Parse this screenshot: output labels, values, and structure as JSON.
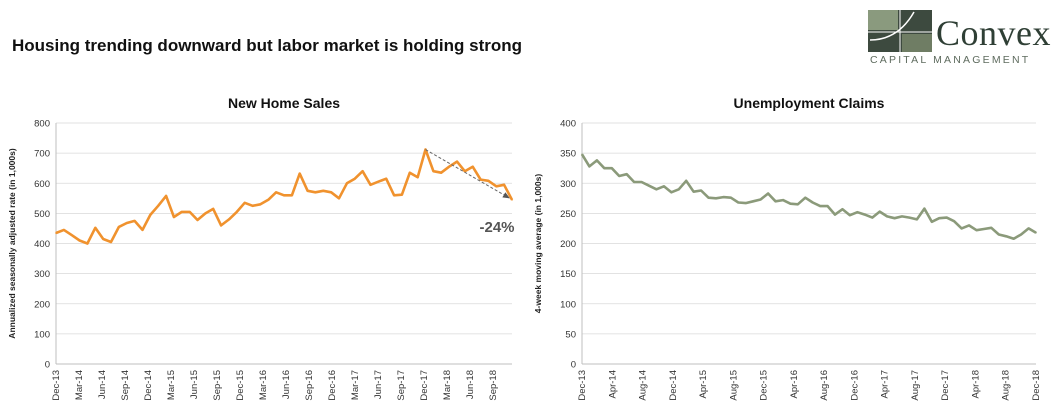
{
  "page_title": "Housing trending downward but labor market is holding strong",
  "logo": {
    "word": "Convex",
    "subtitle": "CAPITAL MANAGEMENT",
    "colors": [
      "#8a9a7e",
      "#3d4a3f"
    ]
  },
  "chart_data": [
    {
      "type": "line",
      "title": "New Home Sales",
      "ylabel": "Annualized seasonally adjusted rate (in 1,000s)",
      "xlabel": "",
      "ylim": [
        0,
        800
      ],
      "yticks": [
        0,
        100,
        200,
        300,
        400,
        500,
        600,
        700,
        800
      ],
      "x_tick_labels": [
        "Dec-13",
        "Mar-14",
        "Jun-14",
        "Sep-14",
        "Dec-14",
        "Mar-15",
        "Jun-15",
        "Sep-15",
        "Dec-15",
        "Mar-16",
        "Jun-16",
        "Sep-16",
        "Dec-16",
        "Mar-17",
        "Jun-17",
        "Sep-17",
        "Dec-17",
        "Mar-18",
        "Jun-18",
        "Sep-18"
      ],
      "grid": true,
      "color": "#f0922e",
      "series": [
        {
          "values": [
            435,
            445,
            428,
            410,
            400,
            452,
            415,
            405,
            455,
            468,
            475,
            445,
            495,
            525,
            558,
            488,
            505,
            505,
            478,
            500,
            515,
            460,
            480,
            505,
            535,
            525,
            530,
            545,
            570,
            560,
            560,
            632,
            575,
            570,
            575,
            570,
            550,
            600,
            615,
            640,
            595,
            605,
            615,
            560,
            562,
            635,
            620,
            712,
            640,
            635,
            655,
            672,
            640,
            655,
            612,
            608,
            590,
            595,
            545
          ]
        }
      ],
      "annotation": {
        "label": "-24%",
        "from_index": 47,
        "to_index": 58
      }
    },
    {
      "type": "line",
      "title": "Unemployment Claims",
      "ylabel": "4-week moving average (in 1,000s)",
      "xlabel": "",
      "ylim": [
        0,
        400
      ],
      "yticks": [
        0,
        50,
        100,
        150,
        200,
        250,
        300,
        350,
        400
      ],
      "x_tick_labels": [
        "Dec-13",
        "Apr-14",
        "Aug-14",
        "Dec-14",
        "Apr-15",
        "Aug-15",
        "Dec-15",
        "Apr-16",
        "Aug-16",
        "Dec-16",
        "Apr-17",
        "Aug-17",
        "Dec-17",
        "Apr-18",
        "Aug-18",
        "Dec-18"
      ],
      "grid": true,
      "color": "#8b9a7a",
      "series": [
        {
          "values": [
            348,
            328,
            338,
            325,
            325,
            312,
            315,
            302,
            302,
            296,
            290,
            295,
            285,
            290,
            304,
            286,
            288,
            276,
            275,
            277,
            276,
            268,
            267,
            270,
            273,
            283,
            270,
            272,
            266,
            265,
            276,
            268,
            262,
            262,
            248,
            257,
            247,
            252,
            248,
            243,
            253,
            245,
            242,
            245,
            243,
            240,
            258,
            236,
            242,
            243,
            237,
            225,
            230,
            222,
            224,
            226,
            215,
            212,
            208,
            215,
            225,
            218
          ]
        }
      ]
    }
  ]
}
